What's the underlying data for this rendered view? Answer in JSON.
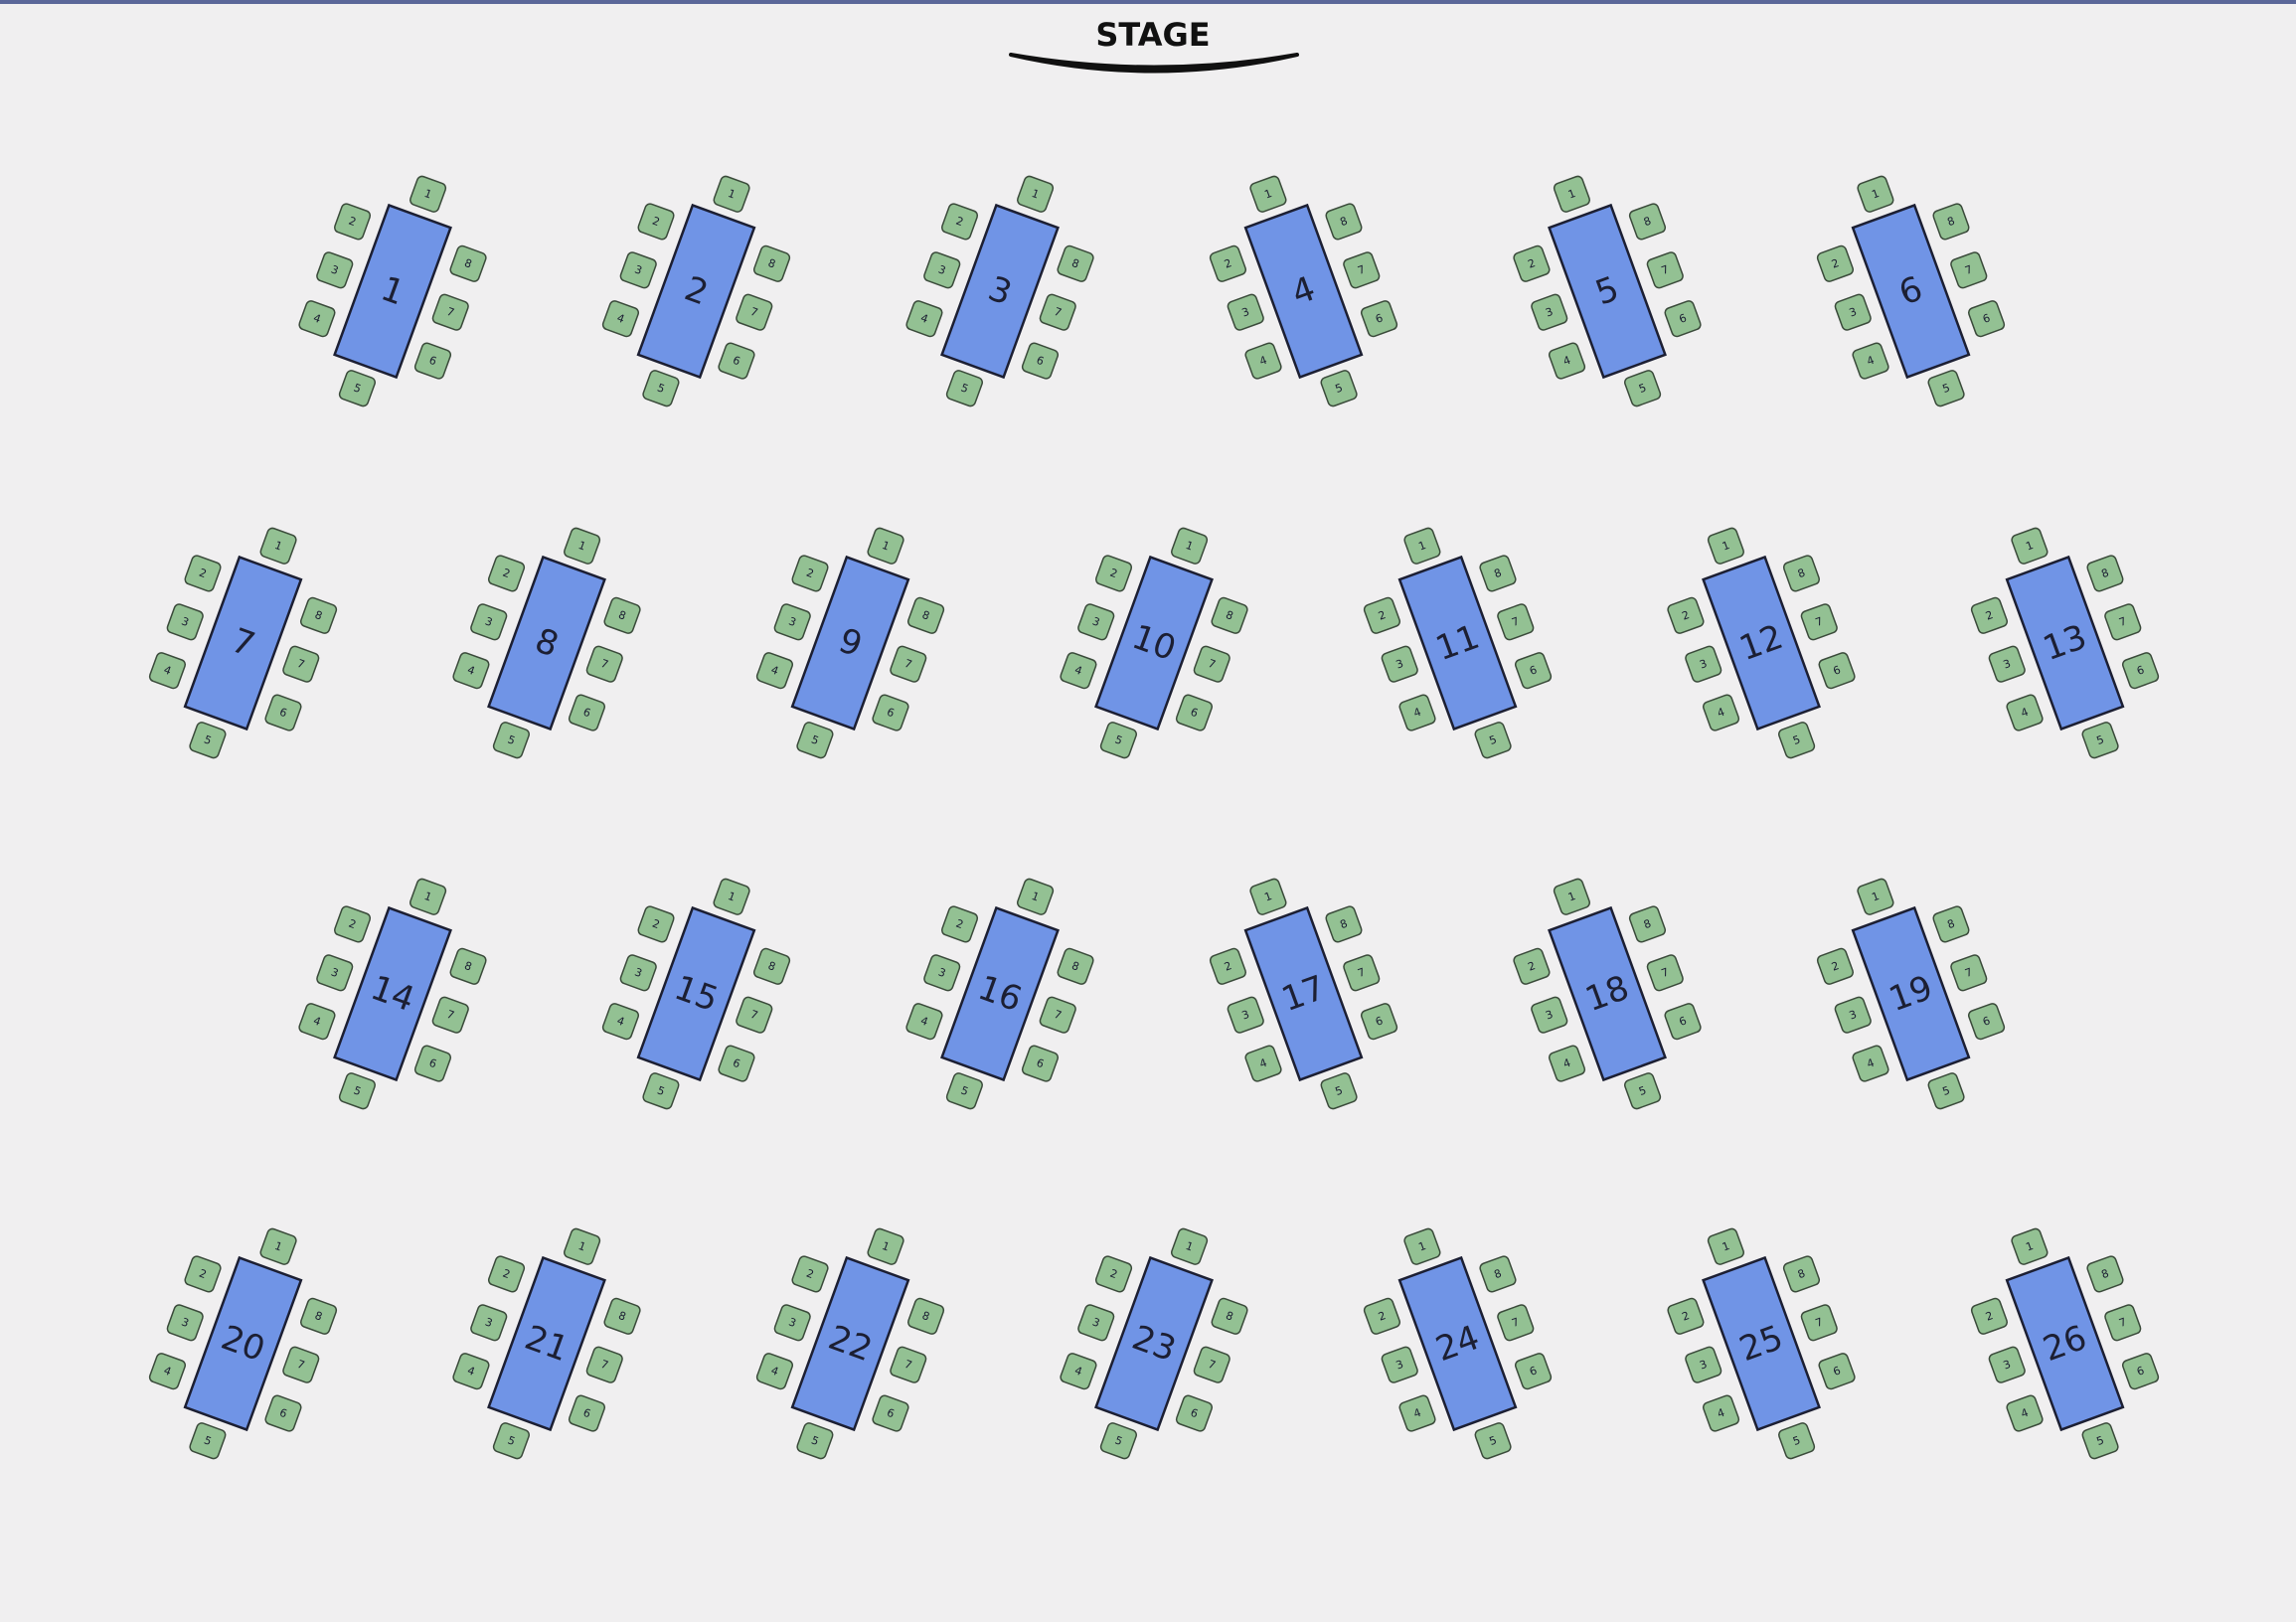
{
  "stage": "STAGE",
  "tables": [
    {
      "label": "1",
      "seats": [
        "1",
        "2",
        "3",
        "4",
        "5",
        "6",
        "7",
        "8"
      ]
    },
    {
      "label": "2",
      "seats": [
        "1",
        "2",
        "3",
        "4",
        "5",
        "6",
        "7",
        "8"
      ]
    },
    {
      "label": "3",
      "seats": [
        "1",
        "2",
        "3",
        "4",
        "5",
        "6",
        "7",
        "8"
      ]
    },
    {
      "label": "4",
      "seats": [
        "1",
        "2",
        "3",
        "4",
        "5",
        "6",
        "7",
        "8"
      ]
    },
    {
      "label": "5",
      "seats": [
        "1",
        "2",
        "3",
        "4",
        "5",
        "6",
        "7",
        "8"
      ]
    },
    {
      "label": "6",
      "seats": [
        "1",
        "2",
        "3",
        "4",
        "5",
        "6",
        "7",
        "8"
      ]
    },
    {
      "label": "7",
      "seats": [
        "1",
        "2",
        "3",
        "4",
        "5",
        "6",
        "7",
        "8"
      ]
    },
    {
      "label": "8",
      "seats": [
        "1",
        "2",
        "3",
        "4",
        "5",
        "6",
        "7",
        "8"
      ]
    },
    {
      "label": "9",
      "seats": [
        "1",
        "2",
        "3",
        "4",
        "5",
        "6",
        "7",
        "8"
      ]
    },
    {
      "label": "10",
      "seats": [
        "1",
        "2",
        "3",
        "4",
        "5",
        "6",
        "7",
        "8"
      ]
    },
    {
      "label": "11",
      "seats": [
        "1",
        "2",
        "3",
        "4",
        "5",
        "6",
        "7",
        "8"
      ]
    },
    {
      "label": "12",
      "seats": [
        "1",
        "2",
        "3",
        "4",
        "5",
        "6",
        "7",
        "8"
      ]
    },
    {
      "label": "13",
      "seats": [
        "1",
        "2",
        "3",
        "4",
        "5",
        "6",
        "7",
        "8"
      ]
    },
    {
      "label": "14",
      "seats": [
        "1",
        "2",
        "3",
        "4",
        "5",
        "6",
        "7",
        "8"
      ]
    },
    {
      "label": "15",
      "seats": [
        "1",
        "2",
        "3",
        "4",
        "5",
        "6",
        "7",
        "8"
      ]
    },
    {
      "label": "16",
      "seats": [
        "1",
        "2",
        "3",
        "4",
        "5",
        "6",
        "7",
        "8"
      ]
    },
    {
      "label": "17",
      "seats": [
        "1",
        "2",
        "3",
        "4",
        "5",
        "6",
        "7",
        "8"
      ]
    },
    {
      "label": "18",
      "seats": [
        "1",
        "2",
        "3",
        "4",
        "5",
        "6",
        "7",
        "8"
      ]
    },
    {
      "label": "19",
      "seats": [
        "1",
        "2",
        "3",
        "4",
        "5",
        "6",
        "7",
        "8"
      ]
    },
    {
      "label": "20",
      "seats": [
        "1",
        "2",
        "3",
        "4",
        "5",
        "6",
        "7",
        "8"
      ]
    },
    {
      "label": "21",
      "seats": [
        "1",
        "2",
        "3",
        "4",
        "5",
        "6",
        "7",
        "8"
      ]
    },
    {
      "label": "22",
      "seats": [
        "1",
        "2",
        "3",
        "4",
        "5",
        "6",
        "7",
        "8"
      ]
    },
    {
      "label": "23",
      "seats": [
        "1",
        "2",
        "3",
        "4",
        "5",
        "6",
        "7",
        "8"
      ]
    },
    {
      "label": "24",
      "seats": [
        "1",
        "2",
        "3",
        "4",
        "5",
        "6",
        "7",
        "8"
      ]
    },
    {
      "label": "25",
      "seats": [
        "1",
        "2",
        "3",
        "4",
        "5",
        "6",
        "7",
        "8"
      ]
    },
    {
      "label": "26",
      "seats": [
        "1",
        "2",
        "3",
        "4",
        "5",
        "6",
        "7",
        "8"
      ]
    }
  ]
}
